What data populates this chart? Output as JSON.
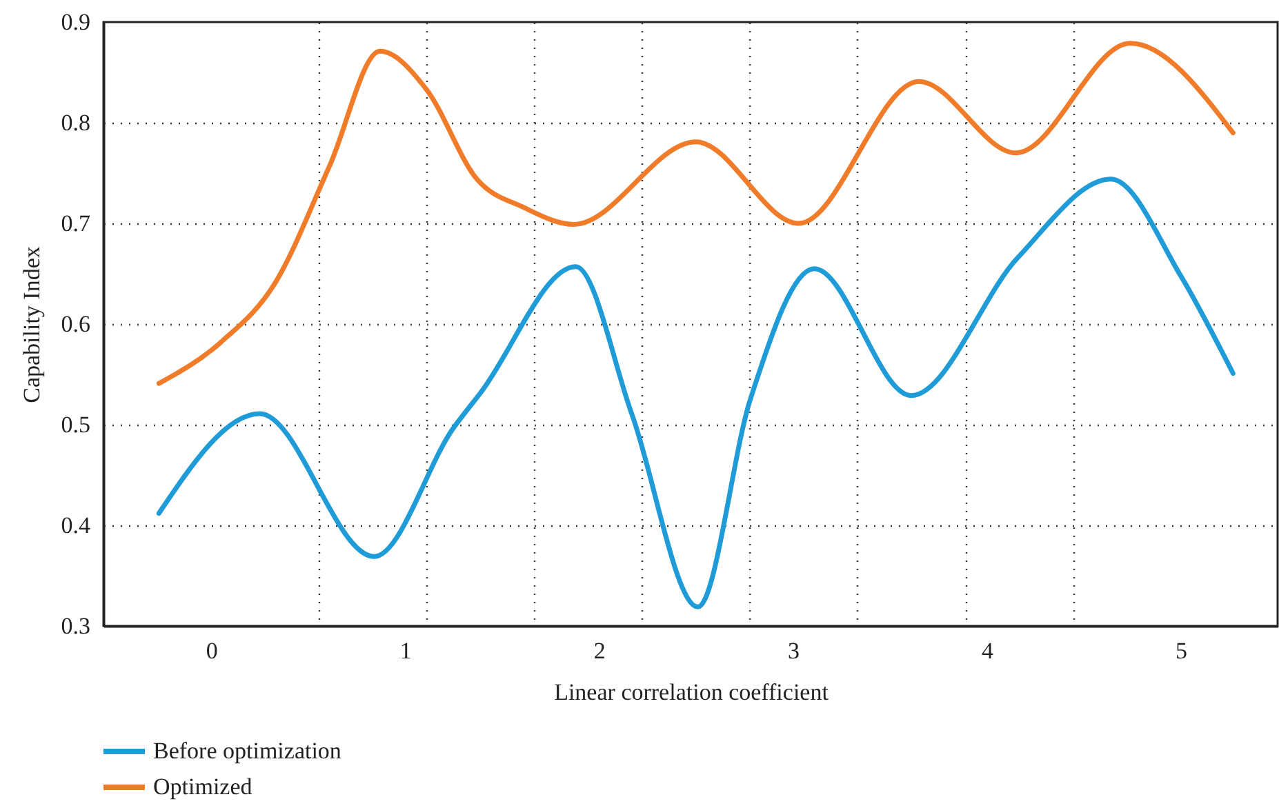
{
  "chart_data": {
    "type": "line",
    "xlabel": "Linear correlation coefficient",
    "ylabel": "Capability Index",
    "xlim": [
      -0.556,
      5.5
    ],
    "ylim": [
      0.3,
      0.9
    ],
    "xticks": [
      0,
      1,
      2,
      3,
      4,
      5,
      {
        "value": 0.556,
        "label": null
      },
      {
        "value": 1.111,
        "label": null
      },
      {
        "value": 1.667,
        "label": null
      },
      {
        "value": 2.222,
        "label": null
      },
      {
        "value": 2.778,
        "label": null
      },
      {
        "value": 3.333,
        "label": null
      },
      {
        "value": 3.889,
        "label": null
      },
      {
        "value": 4.444,
        "label": null
      }
    ],
    "yticks": [
      0.3,
      0.4,
      0.5,
      0.6,
      0.7,
      0.8,
      0.9
    ],
    "grid": true,
    "legend": "bottom left",
    "line_style": "solid",
    "series": [
      {
        "name": "Before optimization",
        "color": "#1f9bd7",
        "x": [
          -0.27,
          0.25,
          0.84,
          1.25,
          1.39,
          1.88,
          2.17,
          2.51,
          2.78,
          3.11,
          3.61,
          4.16,
          4.64,
          5.0,
          5.27
        ],
        "values": [
          0.412,
          0.511,
          0.369,
          0.497,
          0.532,
          0.657,
          0.51,
          0.319,
          0.525,
          0.655,
          0.529,
          0.666,
          0.744,
          0.648,
          0.551
        ]
      },
      {
        "name": "Optimized",
        "color": "#f07c2a",
        "x": [
          -0.27,
          0.05,
          0.33,
          0.61,
          0.87,
          1.11,
          1.37,
          1.61,
          1.87,
          2.5,
          3.03,
          3.65,
          4.15,
          4.74,
          5.27
        ],
        "values": [
          0.541,
          0.582,
          0.641,
          0.757,
          0.871,
          0.833,
          0.744,
          0.716,
          0.699,
          0.781,
          0.7,
          0.841,
          0.77,
          0.879,
          0.79
        ]
      }
    ]
  }
}
